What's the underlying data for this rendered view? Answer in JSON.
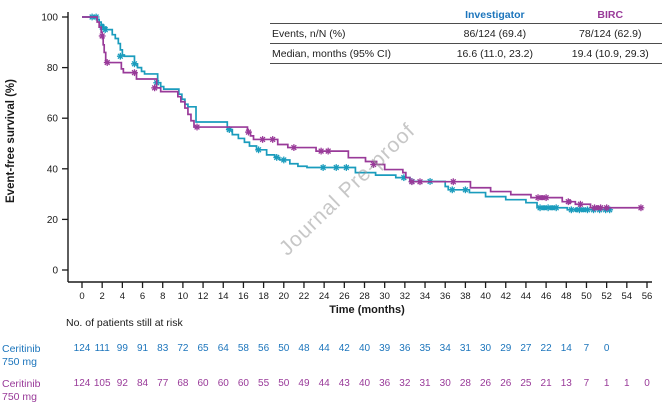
{
  "watermark": "Journal Pre-proof",
  "colors": {
    "investigator_curve": "#1a9cbd",
    "investigator_label": "#1c75bc",
    "birc": "#993a99",
    "axis": "#1a1a1a",
    "watermark": "#9a9a9a"
  },
  "inset_table": {
    "col_headers": [
      "Investigator",
      "BIRC"
    ],
    "rows": [
      {
        "label": "Events, n/N (%)",
        "investigator": "86/124 (69.4)",
        "birc": "78/124 (62.9)"
      },
      {
        "label": "Median, months (95% CI)",
        "investigator": "16.6 (11.0, 23.2)",
        "birc": "19.4 (10.9, 29.3)"
      }
    ]
  },
  "chart_data": {
    "type": "line",
    "subtype": "kaplan-meier-step",
    "title": "",
    "xlabel": "Time (months)",
    "ylabel": "Event-free survival (%)",
    "xlim": [
      0,
      56
    ],
    "ylim": [
      0,
      100
    ],
    "xticks": [
      0,
      2,
      4,
      6,
      8,
      10,
      12,
      14,
      16,
      18,
      20,
      22,
      24,
      26,
      28,
      30,
      32,
      34,
      36,
      38,
      40,
      42,
      44,
      46,
      48,
      50,
      52,
      54,
      56
    ],
    "yticks": [
      0,
      20,
      40,
      60,
      80,
      100
    ],
    "grid": false,
    "legend_position": "inset-table-top-right",
    "series": [
      {
        "name": "Investigator",
        "color": "#1a9cbd",
        "events": [
          [
            0,
            100
          ],
          [
            1.5,
            99
          ],
          [
            1.7,
            98
          ],
          [
            1.9,
            97
          ],
          [
            2.1,
            96
          ],
          [
            2.4,
            95
          ],
          [
            3.0,
            93
          ],
          [
            3.3,
            91.5
          ],
          [
            3.6,
            89.5
          ],
          [
            3.8,
            87
          ],
          [
            4.0,
            85
          ],
          [
            4.2,
            84.5
          ],
          [
            5.2,
            81.5
          ],
          [
            5.5,
            80
          ],
          [
            5.9,
            78.5
          ],
          [
            6.2,
            77.5
          ],
          [
            7.5,
            74
          ],
          [
            7.8,
            72.5
          ],
          [
            8.1,
            71.5
          ],
          [
            9.6,
            69.5
          ],
          [
            9.9,
            67.5
          ],
          [
            10.2,
            65.5
          ],
          [
            10.5,
            64.5
          ],
          [
            11.3,
            58.5
          ],
          [
            14.4,
            55.5
          ],
          [
            14.9,
            53.5
          ],
          [
            15.5,
            52
          ],
          [
            16.1,
            50.5
          ],
          [
            16.6,
            49
          ],
          [
            17.3,
            47.5
          ],
          [
            18.3,
            45.5
          ],
          [
            19.1,
            44.5
          ],
          [
            19.6,
            43.5
          ],
          [
            20.6,
            42
          ],
          [
            21.4,
            41
          ],
          [
            22.3,
            40.5
          ],
          [
            27.1,
            38.5
          ],
          [
            29.1,
            37.5
          ],
          [
            31.1,
            36.5
          ],
          [
            32.5,
            35
          ],
          [
            36.0,
            33
          ],
          [
            36.3,
            31.7
          ],
          [
            38.4,
            30.6
          ],
          [
            40.0,
            29
          ],
          [
            42.0,
            27.8
          ],
          [
            44.0,
            26.6
          ],
          [
            45.1,
            24.6
          ],
          [
            48.1,
            23.8
          ],
          [
            52.3,
            23.8
          ]
        ],
        "censors": [
          [
            1.0,
            100
          ],
          [
            1.4,
            100
          ],
          [
            2.0,
            96
          ],
          [
            2.3,
            95
          ],
          [
            3.8,
            84.5
          ],
          [
            5.2,
            81.5
          ],
          [
            7.4,
            74
          ],
          [
            14.6,
            55.5
          ],
          [
            17.5,
            47.5
          ],
          [
            19.3,
            44.5
          ],
          [
            20.0,
            43.5
          ],
          [
            23.9,
            40.5
          ],
          [
            25.2,
            40.5
          ],
          [
            26.2,
            40.5
          ],
          [
            31.9,
            36.5
          ],
          [
            32.7,
            35
          ],
          [
            34.5,
            35
          ],
          [
            36.7,
            31.7
          ],
          [
            38.0,
            31.7
          ],
          [
            45.4,
            24.6
          ],
          [
            46.2,
            24.6
          ],
          [
            47.0,
            24.6
          ],
          [
            48.5,
            23.8
          ],
          [
            49.3,
            23.8
          ],
          [
            50.1,
            23.8
          ],
          [
            50.7,
            23.8
          ],
          [
            51.3,
            23.8
          ],
          [
            51.9,
            23.8
          ],
          [
            52.3,
            23.8
          ]
        ],
        "dots": [
          [
            45.8,
            24.6
          ],
          [
            46.6,
            24.6
          ],
          [
            49.0,
            23.8
          ],
          [
            49.7,
            23.8
          ]
        ]
      },
      {
        "name": "BIRC",
        "color": "#993a99",
        "events": [
          [
            0,
            100
          ],
          [
            1.5,
            98
          ],
          [
            1.7,
            96
          ],
          [
            1.9,
            94
          ],
          [
            2.0,
            92.5
          ],
          [
            2.1,
            89
          ],
          [
            2.2,
            86
          ],
          [
            2.35,
            82
          ],
          [
            3.9,
            79.5
          ],
          [
            4.1,
            78
          ],
          [
            5.4,
            75.5
          ],
          [
            7.4,
            72
          ],
          [
            7.8,
            70.5
          ],
          [
            9.5,
            68.5
          ],
          [
            9.8,
            66.5
          ],
          [
            10.2,
            64
          ],
          [
            10.5,
            61.5
          ],
          [
            10.8,
            59
          ],
          [
            11.1,
            56.5
          ],
          [
            16.4,
            54.5
          ],
          [
            16.7,
            53
          ],
          [
            17.0,
            51.6
          ],
          [
            19.4,
            49.6
          ],
          [
            20.4,
            48.4
          ],
          [
            23.2,
            47
          ],
          [
            26.4,
            44.4
          ],
          [
            28.1,
            42.9
          ],
          [
            29.2,
            41.7
          ],
          [
            30.0,
            39.7
          ],
          [
            31.8,
            38.5
          ],
          [
            32.1,
            36.5
          ],
          [
            32.5,
            34.9
          ],
          [
            38.5,
            32.5
          ],
          [
            40.5,
            31
          ],
          [
            42.5,
            29.8
          ],
          [
            44.5,
            28.6
          ],
          [
            47.6,
            27
          ],
          [
            48.9,
            26
          ],
          [
            50.4,
            24.6
          ],
          [
            55.5,
            24.6
          ]
        ],
        "censors": [
          [
            2.0,
            92.5
          ],
          [
            2.5,
            82
          ],
          [
            5.2,
            78
          ],
          [
            7.2,
            72
          ],
          [
            11.4,
            56.5
          ],
          [
            16.5,
            54.5
          ],
          [
            17.9,
            51.6
          ],
          [
            18.9,
            51.6
          ],
          [
            21.0,
            48.4
          ],
          [
            23.7,
            47
          ],
          [
            24.4,
            47
          ],
          [
            28.9,
            41.7
          ],
          [
            32.7,
            34.9
          ],
          [
            33.5,
            34.9
          ],
          [
            36.8,
            34.9
          ],
          [
            45.2,
            28.6
          ],
          [
            46.0,
            28.6
          ],
          [
            48.2,
            27
          ],
          [
            49.4,
            26
          ],
          [
            50.8,
            24.6
          ],
          [
            51.4,
            24.6
          ],
          [
            52.0,
            24.6
          ],
          [
            55.4,
            24.6
          ]
        ],
        "dots": [
          [
            45.6,
            28.6
          ],
          [
            48.3,
            27
          ],
          [
            51.1,
            24.6
          ]
        ]
      }
    ]
  },
  "risk_table": {
    "title": "No. of patients still at risk",
    "rows": [
      {
        "label_lines": [
          "Ceritinib",
          "750 mg"
        ],
        "color": "#1c75bc",
        "counts": [
          124,
          111,
          99,
          91,
          83,
          72,
          65,
          64,
          58,
          56,
          50,
          48,
          44,
          42,
          40,
          39,
          36,
          35,
          34,
          31,
          30,
          29,
          27,
          22,
          14,
          7,
          0
        ]
      },
      {
        "label_lines": [
          "Ceritinib",
          "750 mg"
        ],
        "color": "#993a99",
        "counts": [
          124,
          105,
          92,
          84,
          77,
          68,
          60,
          60,
          60,
          55,
          50,
          49,
          44,
          43,
          40,
          36,
          32,
          31,
          30,
          28,
          26,
          26,
          25,
          21,
          13,
          7,
          1,
          1,
          0
        ]
      }
    ]
  }
}
